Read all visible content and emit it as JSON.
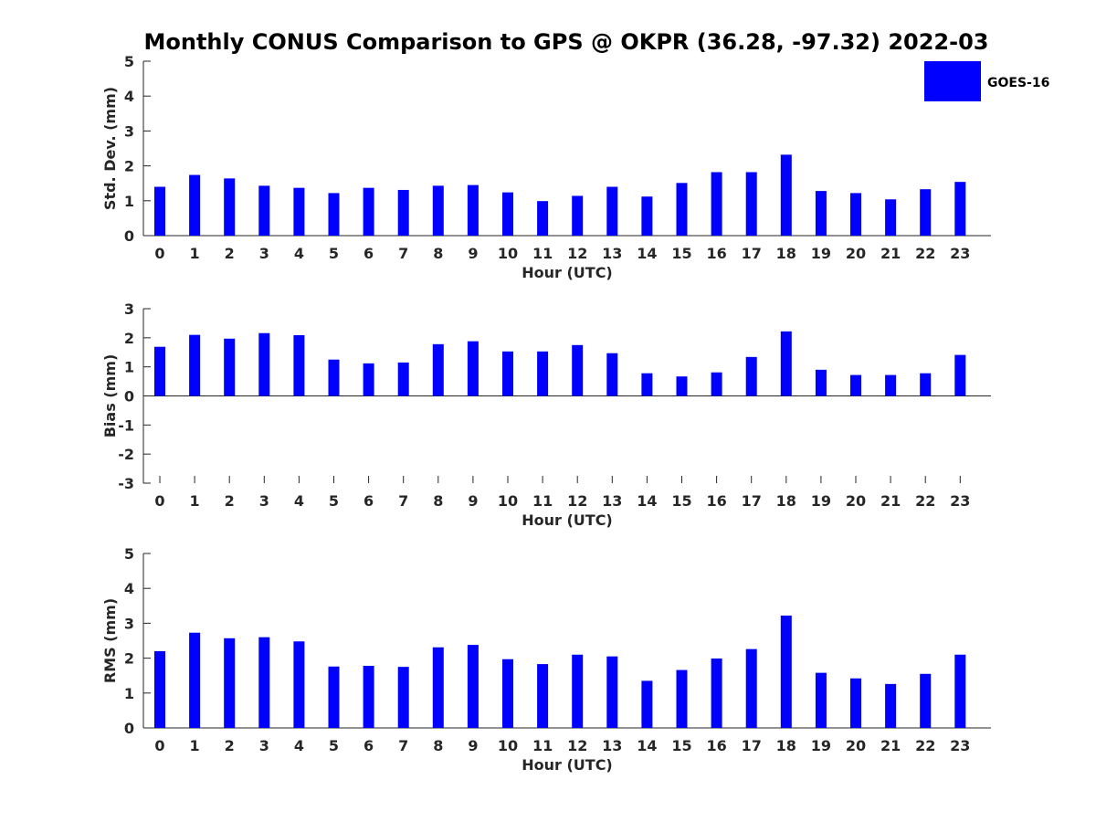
{
  "title": "Monthly CONUS Comparison to GPS @ OKPR (36.28, -97.32) 2022-03",
  "legend": {
    "label": "GOES-16",
    "color": "#0000ff"
  },
  "chart_data": [
    {
      "type": "bar",
      "id": "stddev",
      "ylabel": "Std. Dev. (mm)",
      "xlabel": "Hour (UTC)",
      "ylim": [
        0,
        5
      ],
      "yticks": [
        0,
        1,
        2,
        3,
        4,
        5
      ],
      "categories": [
        "0",
        "1",
        "2",
        "3",
        "4",
        "5",
        "6",
        "7",
        "8",
        "9",
        "10",
        "11",
        "12",
        "13",
        "14",
        "15",
        "16",
        "17",
        "18",
        "19",
        "20",
        "21",
        "22",
        "23"
      ],
      "series": [
        {
          "name": "GOES-16",
          "color": "#0000ff",
          "values": [
            1.4,
            1.74,
            1.64,
            1.43,
            1.37,
            1.22,
            1.37,
            1.31,
            1.43,
            1.45,
            1.24,
            0.99,
            1.14,
            1.4,
            1.12,
            1.51,
            1.82,
            1.82,
            2.32,
            1.28,
            1.22,
            1.04,
            1.33,
            1.54
          ]
        }
      ]
    },
    {
      "type": "bar",
      "id": "bias",
      "ylabel": "Bias (mm)",
      "xlabel": "Hour (UTC)",
      "ylim": [
        -3,
        3
      ],
      "yticks": [
        -3,
        -2,
        -1,
        0,
        1,
        2,
        3
      ],
      "categories": [
        "0",
        "1",
        "2",
        "3",
        "4",
        "5",
        "6",
        "7",
        "8",
        "9",
        "10",
        "11",
        "12",
        "13",
        "14",
        "15",
        "16",
        "17",
        "18",
        "19",
        "20",
        "21",
        "22",
        "23"
      ],
      "series": [
        {
          "name": "GOES-16",
          "color": "#0000ff",
          "values": [
            1.69,
            2.1,
            1.97,
            2.16,
            2.09,
            1.25,
            1.12,
            1.15,
            1.78,
            1.88,
            1.53,
            1.53,
            1.75,
            1.47,
            0.78,
            0.67,
            0.81,
            1.34,
            2.22,
            0.9,
            0.72,
            0.72,
            0.78,
            1.41
          ]
        }
      ]
    },
    {
      "type": "bar",
      "id": "rms",
      "ylabel": "RMS (mm)",
      "xlabel": "Hour (UTC)",
      "ylim": [
        0,
        5
      ],
      "yticks": [
        0,
        1,
        2,
        3,
        4,
        5
      ],
      "categories": [
        "0",
        "1",
        "2",
        "3",
        "4",
        "5",
        "6",
        "7",
        "8",
        "9",
        "10",
        "11",
        "12",
        "13",
        "14",
        "15",
        "16",
        "17",
        "18",
        "19",
        "20",
        "21",
        "22",
        "23"
      ],
      "series": [
        {
          "name": "GOES-16",
          "color": "#0000ff",
          "values": [
            2.2,
            2.73,
            2.57,
            2.6,
            2.48,
            1.76,
            1.78,
            1.75,
            2.31,
            2.38,
            1.97,
            1.83,
            2.1,
            2.05,
            1.35,
            1.66,
            1.99,
            2.26,
            3.22,
            1.58,
            1.42,
            1.26,
            1.55,
            2.1
          ]
        }
      ]
    }
  ]
}
